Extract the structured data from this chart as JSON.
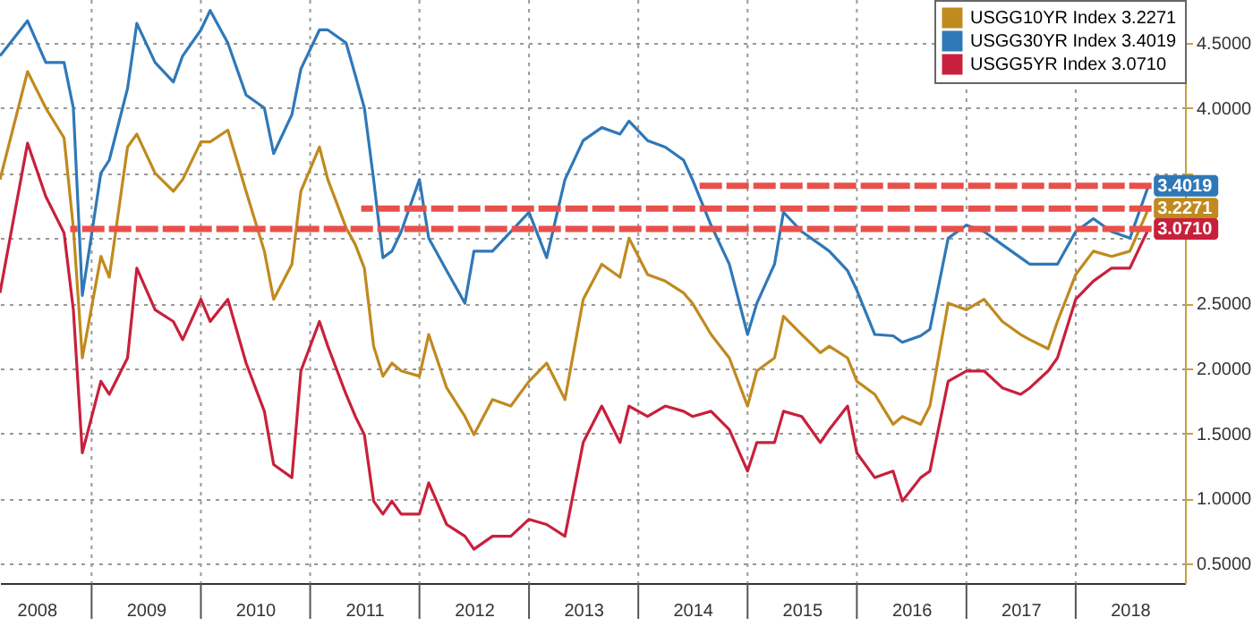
{
  "chart_data": {
    "type": "line",
    "x": [
      "2008-03",
      "2008-06",
      "2008-08",
      "2008-10",
      "2008-11",
      "2008-12",
      "2009-02",
      "2009-03",
      "2009-05",
      "2009-06",
      "2009-08",
      "2009-10",
      "2009-11",
      "2010-01",
      "2010-02",
      "2010-04",
      "2010-06",
      "2010-08",
      "2010-09",
      "2010-11",
      "2010-12",
      "2011-02",
      "2011-03",
      "2011-05",
      "2011-06",
      "2011-07",
      "2011-08",
      "2011-09",
      "2011-10",
      "2011-11",
      "2012-01",
      "2012-02",
      "2012-04",
      "2012-06",
      "2012-07",
      "2012-09",
      "2012-11",
      "2013-01",
      "2013-03",
      "2013-05",
      "2013-07",
      "2013-09",
      "2013-11",
      "2013-12",
      "2014-02",
      "2014-04",
      "2014-06",
      "2014-07",
      "2014-09",
      "2014-11",
      "2015-01",
      "2015-02",
      "2015-04",
      "2015-05",
      "2015-07",
      "2015-09",
      "2015-10",
      "2015-12",
      "2016-01",
      "2016-03",
      "2016-05",
      "2016-06",
      "2016-08",
      "2016-09",
      "2016-11",
      "2017-01",
      "2017-03",
      "2017-05",
      "2017-07",
      "2017-08",
      "2017-10",
      "2017-11",
      "2018-01",
      "2018-03",
      "2018-05",
      "2018-07",
      "2018-09"
    ],
    "series": [
      {
        "name": "USGG10YR Index 3.2271",
        "color": "#c08a1e",
        "values": [
          3.45,
          4.28,
          4.0,
          3.77,
          3.08,
          2.08,
          2.86,
          2.7,
          3.7,
          3.8,
          3.5,
          3.36,
          3.45,
          3.74,
          3.74,
          3.83,
          3.36,
          2.9,
          2.53,
          2.8,
          3.36,
          3.7,
          3.45,
          3.08,
          2.95,
          2.77,
          2.17,
          1.94,
          2.04,
          1.98,
          1.94,
          2.26,
          1.85,
          1.63,
          1.49,
          1.76,
          1.71,
          1.9,
          2.04,
          1.76,
          2.53,
          2.8,
          2.7,
          3.0,
          2.72,
          2.67,
          2.58,
          2.5,
          2.26,
          2.08,
          1.71,
          1.98,
          2.08,
          2.4,
          2.26,
          2.12,
          2.17,
          2.08,
          1.9,
          1.8,
          1.57,
          1.63,
          1.57,
          1.71,
          2.5,
          2.45,
          2.53,
          2.36,
          2.26,
          2.22,
          2.15,
          2.36,
          2.72,
          2.9,
          2.86,
          2.9,
          3.2271
        ],
        "value_labels": [
          null,
          null,
          null,
          null,
          null,
          null,
          null,
          null,
          null,
          null,
          null,
          null,
          null,
          null,
          null,
          null,
          null,
          null,
          null,
          null,
          null,
          null,
          null,
          null,
          null,
          null,
          null,
          null,
          null,
          null,
          null,
          null,
          null,
          null,
          null,
          null,
          null,
          null,
          null,
          null,
          null,
          null,
          null,
          null,
          null,
          null,
          null,
          null,
          null,
          null,
          null,
          null,
          null,
          null,
          null,
          null,
          null,
          null,
          null,
          null,
          null,
          null,
          null,
          null,
          null,
          null,
          null,
          null,
          null,
          null,
          null,
          null,
          null,
          null,
          null,
          null,
          "3.2271"
        ]
      },
      {
        "name": "USGG30YR Index 3.4019",
        "color": "#2f78b8",
        "values": [
          4.4,
          4.67,
          4.35,
          4.35,
          4.0,
          2.56,
          3.5,
          3.6,
          4.15,
          4.65,
          4.35,
          4.2,
          4.4,
          4.6,
          4.75,
          4.5,
          4.1,
          4.0,
          3.65,
          3.95,
          4.3,
          4.6,
          4.6,
          4.5,
          4.25,
          4.0,
          3.45,
          2.85,
          2.9,
          3.05,
          3.45,
          3.0,
          2.75,
          2.5,
          2.9,
          2.9,
          3.05,
          3.2,
          2.85,
          3.45,
          3.75,
          3.85,
          3.8,
          3.9,
          3.75,
          3.7,
          3.6,
          3.45,
          3.1,
          2.8,
          2.26,
          2.5,
          2.8,
          3.2,
          3.05,
          2.95,
          2.9,
          2.75,
          2.6,
          2.26,
          2.25,
          2.2,
          2.25,
          2.3,
          3.0,
          3.1,
          3.05,
          2.95,
          2.85,
          2.8,
          2.8,
          2.8,
          3.05,
          3.15,
          3.05,
          3.0,
          3.4019
        ],
        "value_labels": [
          null,
          null,
          null,
          null,
          null,
          null,
          null,
          null,
          null,
          null,
          null,
          null,
          null,
          null,
          null,
          null,
          null,
          null,
          null,
          null,
          null,
          null,
          null,
          null,
          null,
          null,
          null,
          null,
          null,
          null,
          null,
          null,
          null,
          null,
          null,
          null,
          null,
          null,
          null,
          null,
          null,
          null,
          null,
          null,
          null,
          null,
          null,
          null,
          null,
          null,
          null,
          null,
          null,
          null,
          null,
          null,
          null,
          null,
          null,
          null,
          null,
          null,
          null,
          null,
          null,
          null,
          null,
          null,
          null,
          null,
          null,
          null,
          null,
          null,
          null,
          null,
          "3.4019"
        ]
      },
      {
        "name": "USGG5YR Index 3.0710",
        "color": "#c8203c",
        "values": [
          2.58,
          3.73,
          3.32,
          3.04,
          2.45,
          1.35,
          1.9,
          1.8,
          2.08,
          2.77,
          2.45,
          2.36,
          2.22,
          2.53,
          2.36,
          2.53,
          2.04,
          1.67,
          1.26,
          1.16,
          1.98,
          2.36,
          2.17,
          1.8,
          1.63,
          1.49,
          0.98,
          0.88,
          0.98,
          0.88,
          0.88,
          1.12,
          0.8,
          0.71,
          0.61,
          0.71,
          0.71,
          0.84,
          0.8,
          0.71,
          1.43,
          1.71,
          1.43,
          1.71,
          1.63,
          1.71,
          1.67,
          1.63,
          1.67,
          1.53,
          1.21,
          1.43,
          1.43,
          1.67,
          1.63,
          1.43,
          1.53,
          1.71,
          1.35,
          1.16,
          1.21,
          0.98,
          1.16,
          1.21,
          1.9,
          1.98,
          1.98,
          1.85,
          1.8,
          1.85,
          1.98,
          2.08,
          2.53,
          2.67,
          2.77,
          2.77,
          3.071
        ],
        "value_labels": [
          null,
          null,
          null,
          null,
          null,
          null,
          null,
          null,
          null,
          null,
          null,
          null,
          null,
          null,
          null,
          null,
          null,
          null,
          null,
          null,
          null,
          null,
          null,
          null,
          null,
          null,
          null,
          null,
          null,
          null,
          null,
          null,
          null,
          null,
          null,
          null,
          null,
          null,
          null,
          null,
          null,
          null,
          null,
          null,
          null,
          null,
          null,
          null,
          null,
          null,
          null,
          null,
          null,
          null,
          null,
          null,
          null,
          null,
          null,
          null,
          null,
          null,
          null,
          null,
          null,
          null,
          null,
          null,
          null,
          null,
          null,
          null,
          null,
          null,
          null,
          null,
          "3.0710"
        ]
      },
      {
        "type": "line",
        "color": "#e8504a",
        "line_style": "dashed",
        "x": [
          "2018-09",
          "2014-07"
        ],
        "values": [
          3.4019,
          3.4019
        ]
      },
      {
        "type": "line",
        "color": "#e8504a",
        "line_style": "dashed",
        "x": [
          "2018-09",
          "2011-07"
        ],
        "values": [
          3.2271,
          3.2271
        ]
      },
      {
        "type": "line",
        "color": "#e8504a",
        "line_style": "dashed",
        "x": [
          "2018-09",
          "2008-11"
        ],
        "values": [
          3.071,
          3.071
        ]
      }
    ],
    "xlim": [
      "2008-03-01",
      "2019-01-01"
    ],
    "xticks": [
      {
        "value": "2008-07-01",
        "label": "2008"
      },
      {
        "value": "2009-01-01",
        "label": null
      },
      {
        "value": "2009-07-01",
        "label": "2009"
      },
      {
        "value": "2010-01-01",
        "label": null
      },
      {
        "value": "2010-07-01",
        "label": "2010"
      },
      {
        "value": "2011-01-01",
        "label": null
      },
      {
        "value": "2011-07-01",
        "label": "2011"
      },
      {
        "value": "2012-01-01",
        "label": null
      },
      {
        "value": "2012-07-01",
        "label": "2012"
      },
      {
        "value": "2013-01-01",
        "label": null
      },
      {
        "value": "2013-07-01",
        "label": "2013"
      },
      {
        "value": "2014-01-01",
        "label": null
      },
      {
        "value": "2014-07-01",
        "label": "2014"
      },
      {
        "value": "2015-01-01",
        "label": null
      },
      {
        "value": "2015-07-01",
        "label": "2015"
      },
      {
        "value": "2016-01-01",
        "label": null
      },
      {
        "value": "2016-07-01",
        "label": "2016"
      },
      {
        "value": "2017-01-01",
        "label": null
      },
      {
        "value": "2017-07-01",
        "label": "2017"
      },
      {
        "value": "2018-01-01",
        "label": null
      },
      {
        "value": "2018-07-01",
        "label": "2018"
      }
    ],
    "ylim": [
      0.35,
      4.83
    ],
    "yticks": [
      {
        "value": 0.5,
        "label": "0.5000"
      },
      {
        "value": 1,
        "label": "1.0000"
      },
      {
        "value": 1.5,
        "label": "1.5000"
      },
      {
        "value": 2,
        "label": "2.0000"
      },
      {
        "value": 2.5,
        "label": "2.5000"
      },
      {
        "value": 3,
        "label": null
      },
      {
        "value": 3.5,
        "label": null
      },
      {
        "value": 4,
        "label": "4.0000"
      },
      {
        "value": 4.5,
        "label": "4.5000"
      }
    ],
    "grid": true,
    "legend": "top right"
  }
}
